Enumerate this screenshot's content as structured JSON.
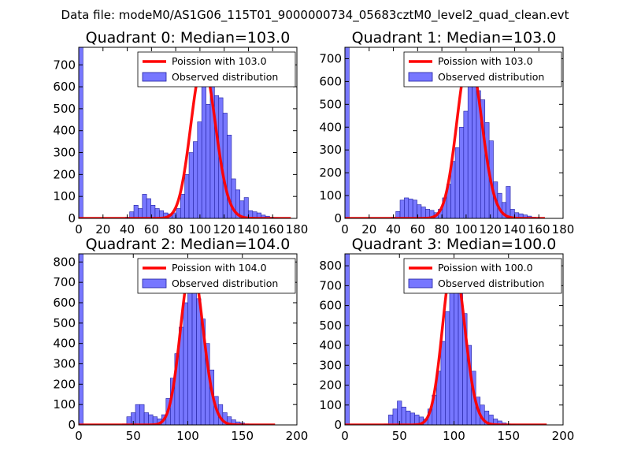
{
  "figure_title": "Data file: modeM0/AS1G06_115T01_9000000734_05683cztM0_level2_quad_clean.evt",
  "colors": {
    "bar": "#7777ff",
    "bar_edge": "#2020a0",
    "poisson": "#ff0000",
    "axis": "#000000"
  },
  "chart_data": [
    {
      "type": "bar",
      "title": "Quadrant 0: Median=103.0",
      "xlim": [
        0,
        180
      ],
      "ylim": [
        0,
        780
      ],
      "xticks": [
        0,
        20,
        40,
        60,
        80,
        100,
        120,
        140,
        160,
        180
      ],
      "yticks": [
        0,
        100,
        200,
        300,
        400,
        500,
        600,
        700
      ],
      "bin_width": 3.5,
      "bins": [
        [
          0,
          780
        ],
        [
          3.5,
          0
        ],
        [
          7,
          0
        ],
        [
          10.5,
          0
        ],
        [
          14,
          0
        ],
        [
          17.5,
          0
        ],
        [
          21,
          0
        ],
        [
          24.5,
          0
        ],
        [
          28,
          0
        ],
        [
          31.5,
          0
        ],
        [
          35,
          0
        ],
        [
          38.5,
          5
        ],
        [
          42,
          30
        ],
        [
          45.5,
          60
        ],
        [
          49,
          45
        ],
        [
          52.5,
          110
        ],
        [
          56,
          90
        ],
        [
          59.5,
          60
        ],
        [
          63,
          45
        ],
        [
          66.5,
          35
        ],
        [
          70,
          25
        ],
        [
          73.5,
          20
        ],
        [
          77,
          25
        ],
        [
          80.5,
          45
        ],
        [
          84,
          110
        ],
        [
          87.5,
          200
        ],
        [
          91,
          300
        ],
        [
          94.5,
          350
        ],
        [
          98,
          440
        ],
        [
          101.5,
          640
        ],
        [
          105,
          520
        ],
        [
          108.5,
          610
        ],
        [
          112,
          560
        ],
        [
          115.5,
          550
        ],
        [
          119,
          480
        ],
        [
          122.5,
          380
        ],
        [
          126,
          180
        ],
        [
          129.5,
          130
        ],
        [
          133,
          80
        ],
        [
          136.5,
          95
        ],
        [
          140,
          35
        ],
        [
          143.5,
          30
        ],
        [
          147,
          25
        ],
        [
          150.5,
          15
        ],
        [
          154,
          10
        ],
        [
          157.5,
          5
        ],
        [
          161,
          3
        ],
        [
          164.5,
          0
        ],
        [
          168,
          0
        ],
        [
          171.5,
          0
        ]
      ],
      "poisson_mean": 103.0,
      "poisson_peak": 705,
      "poisson_range": [
        0,
        175
      ],
      "legend": {
        "location": "upper-right",
        "entries": [
          "Poission with 103.0",
          "Observed distribution"
        ]
      }
    },
    {
      "type": "bar",
      "title": "Quadrant 1: Median=103.0",
      "xlim": [
        0,
        180
      ],
      "ylim": [
        0,
        750
      ],
      "xticks": [
        0,
        20,
        40,
        60,
        80,
        100,
        120,
        140,
        160,
        180
      ],
      "yticks": [
        0,
        100,
        200,
        300,
        400,
        500,
        600,
        700
      ],
      "bin_width": 3.5,
      "bins": [
        [
          0,
          750
        ],
        [
          3.5,
          0
        ],
        [
          7,
          0
        ],
        [
          10.5,
          0
        ],
        [
          14,
          0
        ],
        [
          17.5,
          0
        ],
        [
          21,
          0
        ],
        [
          24.5,
          0
        ],
        [
          28,
          0
        ],
        [
          31.5,
          0
        ],
        [
          35,
          0
        ],
        [
          38.5,
          5
        ],
        [
          42,
          30
        ],
        [
          45.5,
          80
        ],
        [
          49,
          90
        ],
        [
          52.5,
          85
        ],
        [
          56,
          80
        ],
        [
          59.5,
          60
        ],
        [
          63,
          50
        ],
        [
          66.5,
          40
        ],
        [
          70,
          35
        ],
        [
          73.5,
          25
        ],
        [
          77,
          40
        ],
        [
          80.5,
          90
        ],
        [
          84,
          150
        ],
        [
          87.5,
          250
        ],
        [
          91,
          310
        ],
        [
          94.5,
          400
        ],
        [
          98,
          470
        ],
        [
          101.5,
          600
        ],
        [
          105,
          650
        ],
        [
          108.5,
          560
        ],
        [
          112,
          520
        ],
        [
          115.5,
          420
        ],
        [
          119,
          340
        ],
        [
          122.5,
          160
        ],
        [
          126,
          110
        ],
        [
          129.5,
          70
        ],
        [
          133,
          140
        ],
        [
          136.5,
          40
        ],
        [
          140,
          25
        ],
        [
          143.5,
          20
        ],
        [
          147,
          15
        ],
        [
          150.5,
          10
        ],
        [
          154,
          5
        ],
        [
          157.5,
          2
        ],
        [
          161,
          0
        ],
        [
          164.5,
          0
        ],
        [
          168,
          0
        ]
      ],
      "poisson_mean": 103.0,
      "poisson_peak": 710,
      "poisson_range": [
        0,
        165
      ],
      "legend": {
        "location": "upper-right",
        "entries": [
          "Poission with 103.0",
          "Observed distribution"
        ]
      }
    },
    {
      "type": "bar",
      "title": "Quadrant 2: Median=104.0",
      "xlim": [
        0,
        200
      ],
      "ylim": [
        0,
        840
      ],
      "xticks": [
        0,
        50,
        100,
        150,
        200
      ],
      "yticks": [
        0,
        100,
        200,
        300,
        400,
        500,
        600,
        700,
        800
      ],
      "bin_width": 4,
      "bins": [
        [
          0,
          840
        ],
        [
          4,
          0
        ],
        [
          8,
          0
        ],
        [
          12,
          0
        ],
        [
          16,
          0
        ],
        [
          20,
          0
        ],
        [
          24,
          0
        ],
        [
          28,
          0
        ],
        [
          32,
          0
        ],
        [
          36,
          0
        ],
        [
          40,
          5
        ],
        [
          44,
          40
        ],
        [
          48,
          60
        ],
        [
          52,
          100
        ],
        [
          56,
          100
        ],
        [
          60,
          60
        ],
        [
          64,
          50
        ],
        [
          68,
          40
        ],
        [
          72,
          30
        ],
        [
          76,
          50
        ],
        [
          80,
          130
        ],
        [
          84,
          230
        ],
        [
          88,
          350
        ],
        [
          92,
          480
        ],
        [
          96,
          600
        ],
        [
          100,
          780
        ],
        [
          104,
          660
        ],
        [
          108,
          620
        ],
        [
          112,
          520
        ],
        [
          116,
          400
        ],
        [
          120,
          270
        ],
        [
          124,
          140
        ],
        [
          128,
          100
        ],
        [
          132,
          60
        ],
        [
          136,
          40
        ],
        [
          140,
          25
        ],
        [
          144,
          15
        ],
        [
          148,
          10
        ],
        [
          152,
          5
        ],
        [
          156,
          2
        ],
        [
          160,
          0
        ],
        [
          164,
          0
        ],
        [
          168,
          0
        ],
        [
          172,
          0
        ],
        [
          176,
          0
        ]
      ],
      "poisson_mean": 104.0,
      "poisson_peak": 790,
      "poisson_range": [
        0,
        180
      ],
      "legend": {
        "location": "upper-right",
        "entries": [
          "Poission with 104.0",
          "Observed distribution"
        ]
      }
    },
    {
      "type": "bar",
      "title": "Quadrant 3: Median=100.0",
      "xlim": [
        0,
        200
      ],
      "ylim": [
        0,
        860
      ],
      "xticks": [
        0,
        50,
        100,
        150,
        200
      ],
      "yticks": [
        0,
        100,
        200,
        300,
        400,
        500,
        600,
        700,
        800
      ],
      "bin_width": 4,
      "bins": [
        [
          0,
          860
        ],
        [
          4,
          0
        ],
        [
          8,
          0
        ],
        [
          12,
          0
        ],
        [
          16,
          0
        ],
        [
          20,
          0
        ],
        [
          24,
          0
        ],
        [
          28,
          0
        ],
        [
          32,
          0
        ],
        [
          36,
          5
        ],
        [
          40,
          50
        ],
        [
          44,
          80
        ],
        [
          48,
          120
        ],
        [
          52,
          90
        ],
        [
          56,
          70
        ],
        [
          60,
          60
        ],
        [
          64,
          50
        ],
        [
          68,
          40
        ],
        [
          72,
          30
        ],
        [
          76,
          80
        ],
        [
          80,
          150
        ],
        [
          84,
          270
        ],
        [
          88,
          420
        ],
        [
          92,
          570
        ],
        [
          96,
          680
        ],
        [
          100,
          700
        ],
        [
          104,
          820
        ],
        [
          108,
          560
        ],
        [
          112,
          400
        ],
        [
          116,
          270
        ],
        [
          120,
          140
        ],
        [
          124,
          100
        ],
        [
          128,
          70
        ],
        [
          132,
          50
        ],
        [
          136,
          30
        ],
        [
          140,
          20
        ],
        [
          144,
          10
        ],
        [
          148,
          5
        ],
        [
          152,
          2
        ],
        [
          156,
          0
        ],
        [
          160,
          0
        ],
        [
          164,
          0
        ],
        [
          168,
          0
        ],
        [
          172,
          0
        ],
        [
          176,
          0
        ],
        [
          180,
          0
        ]
      ],
      "poisson_mean": 100.0,
      "poisson_peak": 830,
      "poisson_range": [
        0,
        185
      ],
      "legend": {
        "location": "upper-right",
        "entries": [
          "Poission with 100.0",
          "Observed distribution"
        ]
      }
    }
  ]
}
